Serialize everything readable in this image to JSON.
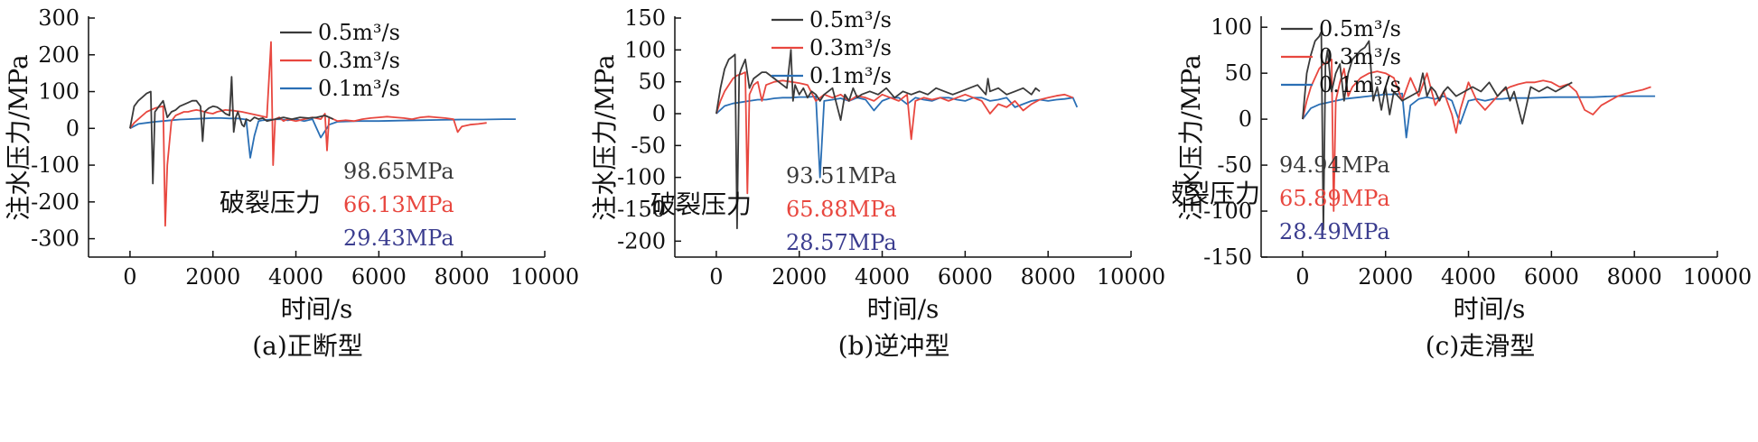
{
  "colors": {
    "0.5": "#3a3a3a",
    "0.3": "#e8473f",
    "0.1": "#2a6fb5",
    "axis": "#111111",
    "annot_blue": "#3b3d8f"
  },
  "chart_data": [
    {
      "type": "line",
      "caption": "(a)正断型",
      "xlabel": "时间/s",
      "ylabel": "注水压力/MPa",
      "xlim": [
        -1000,
        10000
      ],
      "ylim": [
        -350,
        300
      ],
      "xticks": [
        0,
        2000,
        4000,
        6000,
        8000,
        10000
      ],
      "yticks": [
        -300,
        -200,
        -100,
        0,
        100,
        200,
        300
      ],
      "legend_position": "top-right",
      "annotation": {
        "title": "破裂压力",
        "values": [
          "98.65MPa",
          "66.13MPa",
          "29.43MPa"
        ]
      },
      "series": [
        {
          "name": "0.5m³/s",
          "color_key": "0.5",
          "x": [
            0,
            100,
            200,
            300,
            400,
            500,
            550,
            600,
            700,
            800,
            900,
            1000,
            1100,
            1200,
            1300,
            1400,
            1500,
            1600,
            1700,
            1750,
            1800,
            1900,
            2000,
            2100,
            2200,
            2300,
            2400,
            2450,
            2500,
            2550,
            2600,
            2700,
            2750,
            2800,
            2900,
            3000,
            3100,
            3200,
            3300,
            3500,
            3700,
            3900,
            4100,
            4300,
            4500,
            4700,
            4900
          ],
          "y": [
            0,
            60,
            75,
            85,
            95,
            100,
            -150,
            45,
            60,
            75,
            30,
            45,
            50,
            60,
            65,
            70,
            75,
            75,
            60,
            -35,
            45,
            55,
            60,
            58,
            50,
            40,
            35,
            140,
            -10,
            30,
            45,
            10,
            5,
            25,
            20,
            30,
            25,
            28,
            20,
            25,
            30,
            25,
            30,
            28,
            30,
            35,
            25
          ]
        },
        {
          "name": "0.3m³/s",
          "color_key": "0.3",
          "x": [
            0,
            100,
            200,
            300,
            400,
            500,
            600,
            700,
            800,
            850,
            900,
            1000,
            1100,
            1200,
            1300,
            1400,
            1500,
            1600,
            1700,
            1800,
            1900,
            2000,
            2100,
            2300,
            2500,
            2700,
            2900,
            3100,
            3300,
            3400,
            3450,
            3500,
            3600,
            3700,
            3800,
            4000,
            4200,
            4400,
            4600,
            4700,
            4750,
            4800,
            4900,
            5000,
            5200,
            5400,
            5600,
            5800,
            6000,
            6200,
            6400,
            6600,
            6800,
            7000,
            7200,
            7400,
            7600,
            7800,
            7900,
            8000,
            8200,
            8400,
            8600
          ],
          "y": [
            0,
            15,
            25,
            35,
            45,
            50,
            55,
            58,
            60,
            -265,
            -100,
            20,
            35,
            40,
            45,
            45,
            48,
            50,
            48,
            45,
            42,
            40,
            45,
            50,
            48,
            45,
            40,
            35,
            30,
            235,
            -100,
            25,
            30,
            20,
            25,
            20,
            25,
            30,
            25,
            40,
            -60,
            30,
            25,
            20,
            22,
            20,
            25,
            28,
            30,
            32,
            30,
            28,
            25,
            30,
            32,
            30,
            28,
            25,
            -10,
            5,
            10,
            12,
            15
          ]
        },
        {
          "name": "0.1m³/s",
          "color_key": "0.1",
          "x": [
            0,
            200,
            400,
            600,
            800,
            1000,
            1200,
            1400,
            1600,
            1800,
            2000,
            2200,
            2400,
            2600,
            2800,
            2900,
            3000,
            3100,
            3200,
            3400,
            3600,
            3800,
            4000,
            4200,
            4400,
            4600,
            4800,
            5000,
            5500,
            6000,
            6500,
            7000,
            7500,
            8000,
            8500,
            9000,
            9300
          ],
          "y": [
            0,
            12,
            15,
            18,
            20,
            22,
            24,
            25,
            26,
            27,
            28,
            28,
            27,
            27,
            24,
            -80,
            -20,
            20,
            22,
            24,
            25,
            22,
            25,
            20,
            25,
            -25,
            10,
            18,
            20,
            20,
            21,
            22,
            23,
            24,
            24,
            25,
            25
          ]
        }
      ]
    },
    {
      "type": "line",
      "caption": "(b)逆冲型",
      "xlabel": "时间/s",
      "ylabel": "注水压力/MPa",
      "xlim": [
        -1000,
        10000
      ],
      "ylim": [
        -225,
        150
      ],
      "xticks": [
        0,
        2000,
        4000,
        6000,
        8000,
        10000
      ],
      "yticks": [
        -200,
        -150,
        -100,
        -50,
        0,
        50,
        100,
        150
      ],
      "legend_position": "top-right",
      "annotation": {
        "title": "破裂压力",
        "values": [
          "93.51MPa",
          "65.88MPa",
          "28.57MPa"
        ]
      },
      "series": [
        {
          "name": "0.5m³/s",
          "color_key": "0.5",
          "x": [
            0,
            100,
            200,
            300,
            400,
            450,
            500,
            550,
            600,
            700,
            800,
            900,
            1000,
            1100,
            1200,
            1300,
            1400,
            1500,
            1600,
            1700,
            1800,
            1850,
            1900,
            2000,
            2100,
            2200,
            2300,
            2400,
            2500,
            2600,
            2800,
            3000,
            3100,
            3200,
            3300,
            3400,
            3500,
            3700,
            3900,
            4100,
            4300,
            4500,
            4700,
            4900,
            5100,
            5300,
            5500,
            5700,
            5900,
            6100,
            6300,
            6500,
            6550,
            6600,
            6800,
            7000,
            7200,
            7400,
            7600,
            7700,
            7800
          ],
          "y": [
            0,
            40,
            70,
            85,
            90,
            93,
            -180,
            60,
            70,
            85,
            40,
            55,
            60,
            65,
            65,
            60,
            55,
            50,
            45,
            40,
            100,
            20,
            45,
            30,
            40,
            25,
            35,
            30,
            20,
            30,
            40,
            -10,
            30,
            20,
            40,
            25,
            30,
            35,
            30,
            40,
            25,
            35,
            30,
            35,
            30,
            40,
            35,
            30,
            35,
            40,
            45,
            30,
            55,
            35,
            40,
            30,
            35,
            40,
            30,
            40,
            35
          ]
        },
        {
          "name": "0.3m³/s",
          "color_key": "0.3",
          "x": [
            0,
            100,
            200,
            300,
            400,
            500,
            600,
            700,
            750,
            800,
            900,
            1000,
            1100,
            1200,
            1400,
            1600,
            1800,
            2000,
            2200,
            2400,
            2600,
            2800,
            3000,
            3200,
            3400,
            3600,
            3800,
            4000,
            4200,
            4400,
            4600,
            4700,
            4800,
            5000,
            5200,
            5400,
            5600,
            5800,
            6000,
            6200,
            6400,
            6600,
            6800,
            7000,
            7200,
            7400,
            7600,
            7800,
            8000,
            8200,
            8400,
            8600
          ],
          "y": [
            0,
            20,
            35,
            45,
            55,
            60,
            62,
            65,
            -125,
            30,
            45,
            50,
            20,
            45,
            50,
            52,
            50,
            48,
            45,
            20,
            30,
            25,
            30,
            20,
            28,
            25,
            20,
            30,
            25,
            20,
            30,
            -40,
            20,
            25,
            22,
            25,
            20,
            25,
            30,
            25,
            20,
            0,
            15,
            10,
            20,
            5,
            15,
            22,
            25,
            28,
            30,
            25
          ]
        },
        {
          "name": "0.1m³/s",
          "color_key": "0.1",
          "x": [
            0,
            200,
            400,
            600,
            800,
            1000,
            1200,
            1400,
            1600,
            1800,
            2000,
            2200,
            2400,
            2500,
            2600,
            2800,
            3000,
            3200,
            3400,
            3600,
            3800,
            4000,
            4200,
            4400,
            4600,
            4800,
            5000,
            5200,
            5400,
            5600,
            5800,
            6000,
            6200,
            6400,
            6600,
            6800,
            7000,
            7200,
            7400,
            7600,
            7800,
            8000,
            8200,
            8400,
            8600,
            8700
          ],
          "y": [
            0,
            12,
            16,
            18,
            20,
            22,
            22,
            24,
            25,
            25,
            26,
            26,
            27,
            -100,
            20,
            22,
            24,
            20,
            25,
            22,
            5,
            20,
            25,
            25,
            15,
            25,
            22,
            20,
            25,
            25,
            22,
            20,
            25,
            25,
            20,
            22,
            25,
            10,
            15,
            20,
            22,
            20,
            22,
            23,
            25,
            10
          ]
        }
      ]
    },
    {
      "type": "line",
      "caption": "(c)走滑型",
      "xlabel": "时间/s",
      "ylabel": "注水压力/MPa",
      "xlim": [
        -1000,
        10000
      ],
      "ylim": [
        -150,
        110
      ],
      "xticks": [
        0,
        2000,
        4000,
        6000,
        8000,
        10000
      ],
      "yticks": [
        -150,
        -100,
        -50,
        0,
        50,
        100
      ],
      "legend_position": "top-right",
      "annotation": {
        "title": "破裂压力",
        "values": [
          "94.94MPa",
          "65.89MPa",
          "28.49MPa"
        ]
      },
      "series": [
        {
          "name": "0.5m³/s",
          "color_key": "0.5",
          "x": [
            0,
            100,
            200,
            300,
            400,
            450,
            500,
            550,
            600,
            700,
            800,
            900,
            1000,
            1100,
            1200,
            1300,
            1400,
            1500,
            1600,
            1700,
            1800,
            1900,
            2000,
            2100,
            2200,
            2400,
            2600,
            2800,
            2900,
            3000,
            3100,
            3200,
            3300,
            3400,
            3500,
            3700,
            3900,
            4100,
            4300,
            4500,
            4700,
            4900,
            5000,
            5100,
            5300,
            5500,
            5700,
            5900,
            6100,
            6300,
            6500
          ],
          "y": [
            0,
            50,
            70,
            85,
            90,
            95,
            -120,
            60,
            75,
            30,
            50,
            60,
            20,
            50,
            65,
            70,
            75,
            78,
            85,
            20,
            35,
            10,
            35,
            5,
            30,
            20,
            25,
            30,
            50,
            25,
            35,
            30,
            20,
            30,
            35,
            25,
            30,
            35,
            30,
            40,
            25,
            35,
            20,
            30,
            -5,
            35,
            30,
            35,
            30,
            35,
            40
          ]
        },
        {
          "name": "0.3m³/s",
          "color_key": "0.3",
          "x": [
            0,
            100,
            200,
            300,
            400,
            500,
            600,
            700,
            750,
            800,
            900,
            1000,
            1100,
            1200,
            1400,
            1600,
            1800,
            2000,
            2200,
            2400,
            2600,
            2800,
            3000,
            3200,
            3400,
            3600,
            3700,
            3800,
            4000,
            4200,
            4400,
            4600,
            4800,
            5000,
            5200,
            5400,
            5600,
            5800,
            6000,
            6200,
            6400,
            6600,
            6800,
            7000,
            7200,
            7400,
            7600,
            7800,
            8000,
            8200,
            8400
          ],
          "y": [
            0,
            20,
            35,
            45,
            55,
            60,
            62,
            65,
            -100,
            20,
            40,
            55,
            25,
            35,
            45,
            50,
            52,
            50,
            45,
            20,
            45,
            25,
            50,
            15,
            30,
            5,
            -15,
            10,
            40,
            20,
            10,
            20,
            30,
            35,
            38,
            40,
            40,
            42,
            40,
            35,
            38,
            30,
            10,
            5,
            15,
            20,
            25,
            28,
            30,
            32,
            35
          ]
        },
        {
          "name": "0.1m³/s",
          "color_key": "0.1",
          "x": [
            0,
            200,
            400,
            600,
            800,
            1000,
            1200,
            1400,
            1600,
            1800,
            2000,
            2200,
            2400,
            2500,
            2600,
            2800,
            3000,
            3200,
            3400,
            3600,
            3800,
            4000,
            4200,
            4400,
            4600,
            4800,
            5000,
            5500,
            6000,
            6500,
            7000,
            7500,
            8000,
            8500
          ],
          "y": [
            0,
            12,
            16,
            18,
            20,
            22,
            23,
            24,
            25,
            26,
            27,
            27,
            28,
            -20,
            15,
            22,
            24,
            22,
            25,
            20,
            -5,
            20,
            22,
            20,
            22,
            22,
            23,
            23,
            24,
            24,
            24,
            25,
            25,
            25
          ]
        }
      ]
    }
  ]
}
